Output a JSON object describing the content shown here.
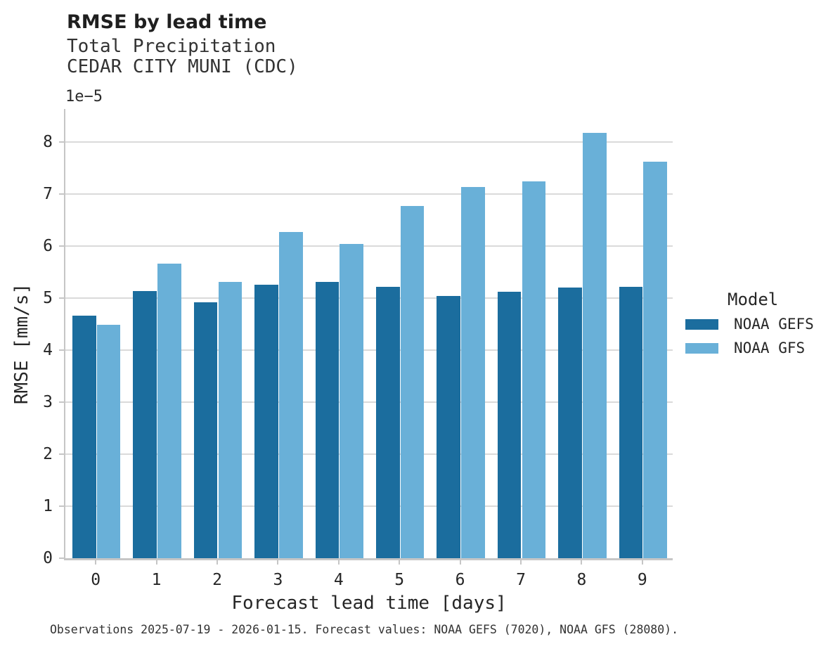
{
  "figure": {
    "title": "RMSE by lead time",
    "subtitle_line1": "Total Precipitation",
    "subtitle_line2": "CEDAR CITY MUNI (CDC)",
    "caption": "Observations 2025-07-19 - 2026-01-15. Forecast values: NOAA GEFS (7020), NOAA GFS (28080)."
  },
  "chart_data": {
    "type": "bar",
    "title": "RMSE by lead time",
    "subtitle": [
      "Total Precipitation",
      "CEDAR CITY MUNI (CDC)"
    ],
    "xlabel": "Forecast lead time [days]",
    "ylabel": "RMSE [mm/s]",
    "y_offset_label": "1e−5",
    "unit": "values are in units of 1e-5 mm/s as shown by axis offset",
    "categories": [
      "0",
      "1",
      "2",
      "3",
      "4",
      "5",
      "6",
      "7",
      "8",
      "9"
    ],
    "series": [
      {
        "name": "NOAA GEFS",
        "color": "#1b6d9e",
        "values": [
          4.67,
          5.14,
          4.92,
          5.26,
          5.32,
          5.22,
          5.05,
          5.12,
          5.2,
          5.22
        ]
      },
      {
        "name": "NOAA GFS",
        "color": "#69b0d8",
        "values": [
          4.49,
          5.67,
          5.32,
          6.27,
          6.04,
          6.77,
          7.14,
          7.25,
          8.18,
          7.62
        ]
      }
    ],
    "yticks": [
      0,
      1,
      2,
      3,
      4,
      5,
      6,
      7,
      8
    ],
    "ylim": [
      0,
      8.64
    ],
    "grid": "horizontal",
    "legend": {
      "title": "Model",
      "position": "right"
    }
  }
}
